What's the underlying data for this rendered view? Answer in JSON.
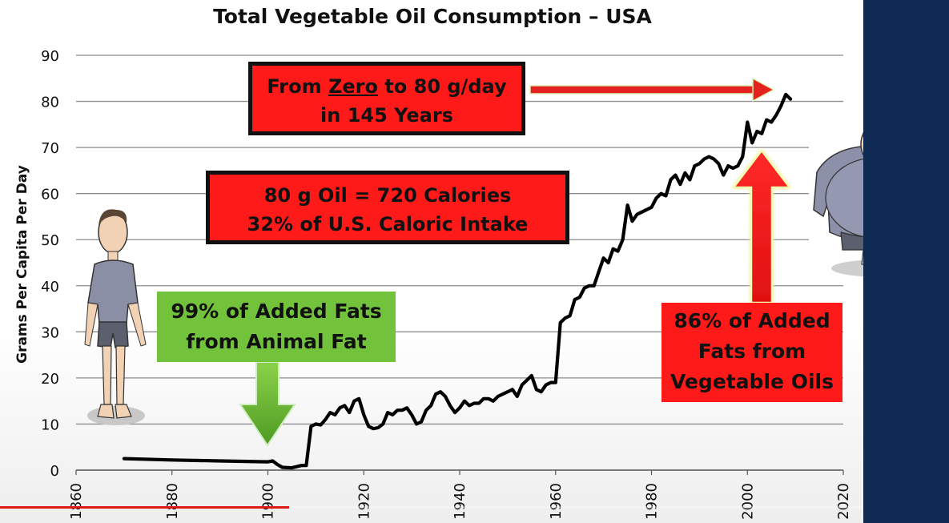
{
  "chart_data": {
    "type": "line",
    "title": "Total Vegetable Oil Consumption – USA",
    "xlabel": "",
    "ylabel": "Grams Per Capita Per Day",
    "xlim": [
      1860,
      2020
    ],
    "ylim": [
      0,
      90
    ],
    "xticks": [
      1860,
      1880,
      1900,
      1920,
      1940,
      1960,
      1980,
      2000,
      2020
    ],
    "yticks": [
      0,
      10,
      20,
      30,
      40,
      50,
      60,
      70,
      80,
      90
    ],
    "grid": true,
    "series": [
      {
        "name": "Vegetable oil consumption",
        "x": [
          1870,
          1880,
          1890,
          1900,
          1901,
          1902,
          1903,
          1905,
          1907,
          1908,
          1909,
          1910,
          1911,
          1912,
          1913,
          1914,
          1915,
          1916,
          1917,
          1918,
          1919,
          1920,
          1921,
          1922,
          1923,
          1924,
          1925,
          1926,
          1927,
          1928,
          1929,
          1930,
          1931,
          1932,
          1933,
          1934,
          1935,
          1936,
          1937,
          1938,
          1939,
          1940,
          1941,
          1942,
          1943,
          1944,
          1945,
          1946,
          1947,
          1948,
          1949,
          1950,
          1951,
          1952,
          1953,
          1954,
          1955,
          1956,
          1957,
          1958,
          1959,
          1960,
          1961,
          1962,
          1963,
          1964,
          1965,
          1966,
          1967,
          1968,
          1969,
          1970,
          1971,
          1972,
          1973,
          1974,
          1975,
          1976,
          1977,
          1978,
          1979,
          1980,
          1981,
          1982,
          1983,
          1984,
          1985,
          1986,
          1987,
          1988,
          1989,
          1990,
          1991,
          1992,
          1993,
          1994,
          1995,
          1996,
          1997,
          1998,
          1999,
          2000,
          2001,
          2002,
          2003,
          2004,
          2005,
          2006,
          2007,
          2008,
          2009
        ],
        "values": [
          2.5,
          2.2,
          2.0,
          1.8,
          2.0,
          1.2,
          0.6,
          0.5,
          1.0,
          1.0,
          9.5,
          10.0,
          9.8,
          11.0,
          12.5,
          12.0,
          13.5,
          14.0,
          12.5,
          15.0,
          15.5,
          12.0,
          9.5,
          9.0,
          9.2,
          10.0,
          12.5,
          12.0,
          13.0,
          13.0,
          13.5,
          12.0,
          10.0,
          10.5,
          13.0,
          14.0,
          16.5,
          17.0,
          16.0,
          14.0,
          12.5,
          13.5,
          15.0,
          14.0,
          14.5,
          14.5,
          15.5,
          15.5,
          15.0,
          16.0,
          16.5,
          17.0,
          17.5,
          16.0,
          18.5,
          19.5,
          20.5,
          17.5,
          17.0,
          18.5,
          19.0,
          19.0,
          32.0,
          33.0,
          33.5,
          37.0,
          37.5,
          39.5,
          40.0,
          40.0,
          43.0,
          46.0,
          45.0,
          48.0,
          47.5,
          50.0,
          57.5,
          54.0,
          55.5,
          56.0,
          56.5,
          57.0,
          59.0,
          60.0,
          59.5,
          63.0,
          64.0,
          62.0,
          64.5,
          63.0,
          66.0,
          66.5,
          67.5,
          68.0,
          67.5,
          66.5,
          64.0,
          66.0,
          65.5,
          66.0,
          68.0,
          75.5,
          71.0,
          73.5,
          73.0,
          76.0,
          75.5,
          77.0,
          79.0,
          81.5,
          80.5
        ]
      }
    ],
    "annotations": [
      "From Zero to 80 g/day in 145 Years",
      "80 g Oil = 720 Calories 32% of U.S. Caloric Intake",
      "99% of Added Fats from Animal Fat",
      "86% of Added Fats from Vegetable Oils"
    ]
  },
  "callouts": {
    "zero_line1_prefix": "From ",
    "zero_word": "Zero",
    "zero_line1_suffix": " to 80 g/day",
    "zero_line2": "in 145 Years",
    "calories_line1": "80 g Oil = 720 Calories",
    "calories_line2": "32% of U.S. Caloric Intake",
    "animal_line1": "99% of Added Fats",
    "animal_line2": "from Animal Fat",
    "veg_line1": "86% of Added",
    "veg_line2": "Fats from",
    "veg_line3": "Vegetable Oils"
  },
  "colors": {
    "callout_red": "#ff1a1a",
    "callout_green": "#73c23c",
    "line": "#000000",
    "grid": "#8c8c8c",
    "panel": "#0e2a52"
  },
  "video": {
    "progress_percent": 33.5
  }
}
